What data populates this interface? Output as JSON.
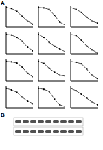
{
  "panel_labels": [
    "A",
    "B"
  ],
  "chart_data": [
    {
      "type": "line",
      "x": [
        0,
        1,
        2,
        3,
        4,
        5
      ],
      "values": [
        100,
        95,
        80,
        55,
        30,
        15
      ],
      "xlim": [
        0,
        5
      ],
      "ylim": [
        0,
        110
      ],
      "tick_labels": false,
      "color": "#000000",
      "marker": "square"
    },
    {
      "type": "line",
      "x": [
        0,
        1,
        2,
        3,
        4,
        5
      ],
      "values": [
        100,
        98,
        90,
        60,
        25,
        10
      ],
      "xlim": [
        0,
        5
      ],
      "ylim": [
        0,
        110
      ],
      "tick_labels": false,
      "color": "#000000",
      "marker": "square"
    },
    {
      "type": "line",
      "x": [
        0,
        1,
        2,
        3,
        4,
        5
      ],
      "values": [
        100,
        90,
        75,
        50,
        30,
        20
      ],
      "xlim": [
        0,
        5
      ],
      "ylim": [
        0,
        110
      ],
      "tick_labels": false,
      "color": "#000000",
      "marker": "square"
    },
    {
      "type": "line",
      "x": [
        0,
        1,
        2,
        3,
        4,
        5
      ],
      "values": [
        100,
        97,
        85,
        65,
        35,
        15
      ],
      "xlim": [
        0,
        5
      ],
      "ylim": [
        0,
        110
      ],
      "tick_labels": false,
      "color": "#000000",
      "marker": "square"
    },
    {
      "type": "line",
      "x": [
        0,
        1,
        2,
        3,
        4,
        5
      ],
      "values": [
        100,
        85,
        60,
        40,
        25,
        10
      ],
      "xlim": [
        0,
        5
      ],
      "ylim": [
        0,
        110
      ],
      "tick_labels": false,
      "color": "#000000",
      "marker": "square"
    },
    {
      "type": "line",
      "x": [
        0,
        1,
        2,
        3,
        4,
        5
      ],
      "values": [
        100,
        95,
        70,
        40,
        20,
        5
      ],
      "xlim": [
        0,
        5
      ],
      "ylim": [
        0,
        110
      ],
      "tick_labels": false,
      "color": "#000000",
      "marker": "square"
    },
    {
      "type": "line",
      "x": [
        0,
        1,
        2,
        3,
        4,
        5
      ],
      "values": [
        100,
        98,
        92,
        70,
        40,
        20
      ],
      "xlim": [
        0,
        5
      ],
      "ylim": [
        0,
        110
      ],
      "tick_labels": false,
      "color": "#000000",
      "marker": "square"
    },
    {
      "type": "line",
      "x": [
        0,
        1,
        2,
        3,
        4,
        5
      ],
      "values": [
        100,
        90,
        65,
        45,
        30,
        25
      ],
      "xlim": [
        0,
        5
      ],
      "ylim": [
        0,
        110
      ],
      "tick_labels": false,
      "color": "#000000",
      "marker": "square"
    },
    {
      "type": "line",
      "x": [
        0,
        1,
        2,
        3,
        4,
        5
      ],
      "values": [
        100,
        96,
        88,
        60,
        30,
        10
      ],
      "xlim": [
        0,
        5
      ],
      "ylim": [
        0,
        110
      ],
      "tick_labels": false,
      "color": "#000000",
      "marker": "square"
    },
    {
      "type": "line",
      "x": [
        0,
        1,
        2,
        3,
        4,
        5
      ],
      "values": [
        100,
        92,
        80,
        55,
        35,
        20
      ],
      "xlim": [
        0,
        5
      ],
      "ylim": [
        0,
        110
      ],
      "tick_labels": false,
      "color": "#000000",
      "marker": "square"
    },
    {
      "type": "line",
      "x": [
        0,
        1,
        2,
        3,
        4,
        5
      ],
      "values": [
        100,
        95,
        85,
        45,
        15,
        5
      ],
      "xlim": [
        0,
        5
      ],
      "ylim": [
        0,
        110
      ],
      "tick_labels": false,
      "color": "#000000",
      "marker": "square"
    },
    {
      "type": "line",
      "x": [
        0,
        1,
        2,
        3,
        4,
        5
      ],
      "values": [
        100,
        88,
        70,
        50,
        30,
        15
      ],
      "xlim": [
        0,
        5
      ],
      "ylim": [
        0,
        110
      ],
      "tick_labels": false,
      "color": "#000000",
      "marker": "square"
    }
  ],
  "blot": {
    "rows": 2,
    "lanes": 9
  }
}
